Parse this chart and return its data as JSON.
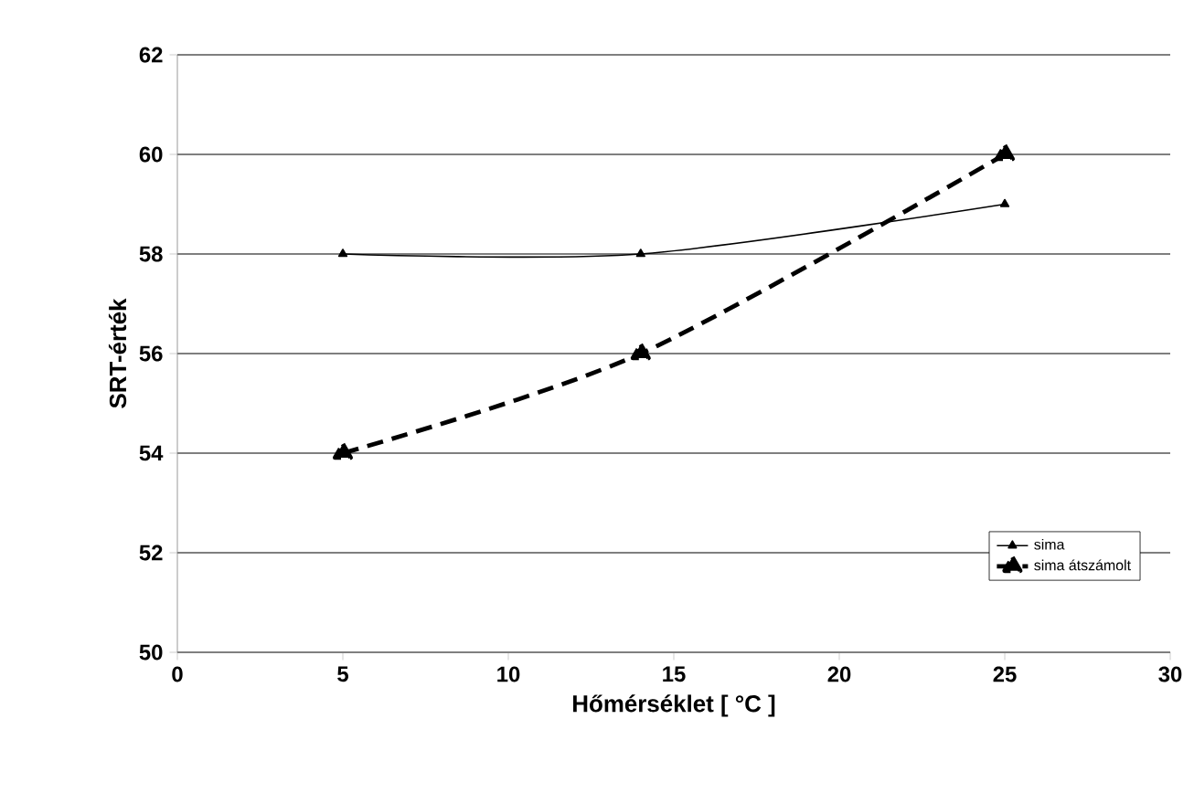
{
  "chart_data": {
    "type": "line",
    "xlabel": "Hőmérséklet [ °C ]",
    "ylabel": "SRT-érték",
    "x": [
      5,
      14,
      25
    ],
    "series": [
      {
        "name": "sima",
        "color": "#000000",
        "values": [
          58,
          58,
          59
        ],
        "line_style": "solid",
        "marker": "triangle"
      },
      {
        "name": "sima átszámolt",
        "color": "#000000",
        "values": [
          54,
          56,
          60
        ],
        "line_style": "dashed",
        "marker": "triangle"
      }
    ],
    "xlim": [
      0,
      30
    ],
    "xticks": [
      0,
      5,
      10,
      15,
      20,
      25,
      30
    ],
    "ylim": [
      50,
      62
    ],
    "yticks": [
      50,
      52,
      54,
      56,
      58,
      60,
      62
    ],
    "grid": "y",
    "legend": "bottom right"
  }
}
